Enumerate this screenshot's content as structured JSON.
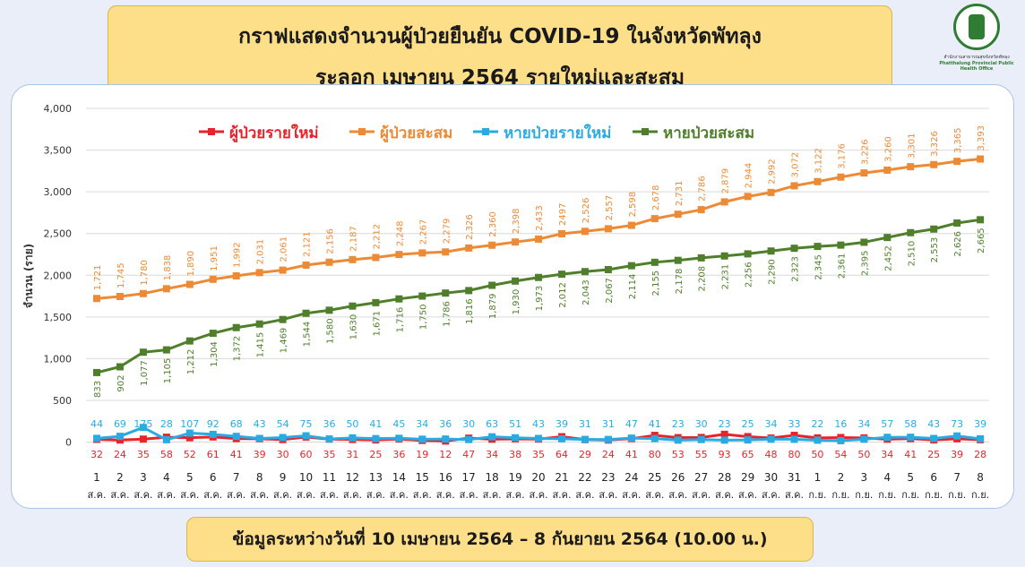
{
  "header": {
    "title_line1": "กราฟแสดงจำนวนผู้ป่วยยืนยัน COVID-19 ในจังหวัดพัทลุง",
    "title_line2": "ระลอก เมษายน 2564 รายใหม่และสะสม"
  },
  "logo": {
    "text_th": "สำนักงานสาธารณสุขจังหวัดพัทลุง",
    "text_en": "Phatthalung Provincial Public Health Office"
  },
  "footer": {
    "note": "ข้อมูลระหว่างวันที่ 10 เมษายน 2564 – 8 กันยายน 2564 (10.00 น.)"
  },
  "chart_data": {
    "type": "line",
    "ylabel": "จำนวน (ราย)",
    "ylim": [
      0,
      4000
    ],
    "yticks": [
      0,
      500,
      1000,
      1500,
      2000,
      2500,
      3000,
      3500,
      4000
    ],
    "ytick_labels": [
      "0",
      "500",
      "1,000",
      "1,500",
      "2,000",
      "2,500",
      "3,000",
      "3,500",
      "4,000"
    ],
    "legend_position": "top",
    "grid": true,
    "categories": [
      {
        "day": "1",
        "month": "ส.ค."
      },
      {
        "day": "2",
        "month": "ส.ค."
      },
      {
        "day": "3",
        "month": "ส.ค."
      },
      {
        "day": "4",
        "month": "ส.ค."
      },
      {
        "day": "5",
        "month": "ส.ค."
      },
      {
        "day": "6",
        "month": "ส.ค."
      },
      {
        "day": "7",
        "month": "ส.ค."
      },
      {
        "day": "8",
        "month": "ส.ค."
      },
      {
        "day": "9",
        "month": "ส.ค."
      },
      {
        "day": "10",
        "month": "ส.ค."
      },
      {
        "day": "11",
        "month": "ส.ค."
      },
      {
        "day": "12",
        "month": "ส.ค."
      },
      {
        "day": "13",
        "month": "ส.ค."
      },
      {
        "day": "14",
        "month": "ส.ค."
      },
      {
        "day": "15",
        "month": "ส.ค."
      },
      {
        "day": "16",
        "month": "ส.ค."
      },
      {
        "day": "17",
        "month": "ส.ค."
      },
      {
        "day": "18",
        "month": "ส.ค."
      },
      {
        "day": "19",
        "month": "ส.ค."
      },
      {
        "day": "20",
        "month": "ส.ค."
      },
      {
        "day": "21",
        "month": "ส.ค."
      },
      {
        "day": "22",
        "month": "ส.ค."
      },
      {
        "day": "23",
        "month": "ส.ค."
      },
      {
        "day": "24",
        "month": "ส.ค."
      },
      {
        "day": "25",
        "month": "ส.ค."
      },
      {
        "day": "26",
        "month": "ส.ค."
      },
      {
        "day": "27",
        "month": "ส.ค."
      },
      {
        "day": "28",
        "month": "ส.ค."
      },
      {
        "day": "29",
        "month": "ส.ค."
      },
      {
        "day": "30",
        "month": "ส.ค."
      },
      {
        "day": "31",
        "month": "ส.ค."
      },
      {
        "day": "1",
        "month": "ก.ย."
      },
      {
        "day": "2",
        "month": "ก.ย."
      },
      {
        "day": "3",
        "month": "ก.ย."
      },
      {
        "day": "4",
        "month": "ก.ย."
      },
      {
        "day": "5",
        "month": "ก.ย."
      },
      {
        "day": "6",
        "month": "ก.ย."
      },
      {
        "day": "7",
        "month": "ก.ย."
      },
      {
        "day": "8",
        "month": "ก.ย."
      }
    ],
    "series": [
      {
        "name": "ผู้ป่วยรายใหม่",
        "color": "#e8232b",
        "label_position": "below",
        "values": [
          32,
          24,
          35,
          58,
          52,
          61,
          41,
          39,
          30,
          60,
          35,
          31,
          25,
          36,
          19,
          12,
          47,
          34,
          38,
          35,
          64,
          29,
          24,
          41,
          80,
          53,
          55,
          93,
          65,
          48,
          80,
          50,
          54,
          50,
          34,
          41,
          25,
          39,
          28
        ],
        "labels": [
          "32",
          "24",
          "35",
          "58",
          "52",
          "61",
          "41",
          "39",
          "30",
          "60",
          "35",
          "31",
          "25",
          "36",
          "19",
          "12",
          "47",
          "34",
          "38",
          "35",
          "64",
          "29",
          "24",
          "41",
          "80",
          "53",
          "55",
          "93",
          "65",
          "48",
          "80",
          "50",
          "54",
          "50",
          "34",
          "41",
          "25",
          "39",
          "28"
        ]
      },
      {
        "name": "ผู้ป่วยสะสม",
        "color": "#ed8a35",
        "label_position": "above",
        "values": [
          1721,
          1745,
          1780,
          1838,
          1890,
          1951,
          1992,
          2031,
          2061,
          2121,
          2156,
          2187,
          2212,
          2248,
          2267,
          2279,
          2326,
          2360,
          2398,
          2433,
          2497,
          2526,
          2557,
          2598,
          2678,
          2731,
          2786,
          2879,
          2944,
          2992,
          3072,
          3122,
          3176,
          3226,
          3260,
          3301,
          3326,
          3365,
          3393
        ],
        "labels": [
          "1,721",
          "1,745",
          "1,780",
          "1,838",
          "1,890",
          "1,951",
          "1,992",
          "2,031",
          "2,061",
          "2,121",
          "2,156",
          "2,187",
          "2,212",
          "2,248",
          "2,267",
          "2,279",
          "2,326",
          "2,360",
          "2,398",
          "2,433",
          "2497",
          "2,526",
          "2,557",
          "2,598",
          "2,678",
          "2,731",
          "2,786",
          "2,879",
          "2,944",
          "2,992",
          "3,072",
          "3,122",
          "3,176",
          "3,226",
          "3,260",
          "3,301",
          "3,326",
          "3,365",
          "3,393"
        ]
      },
      {
        "name": "หายป่วยรายใหม่",
        "color": "#29abe2",
        "label_position": "above",
        "values": [
          44,
          69,
          175,
          28,
          107,
          92,
          68,
          43,
          54,
          75,
          36,
          50,
          41,
          45,
          34,
          36,
          30,
          63,
          51,
          43,
          39,
          31,
          31,
          47,
          41,
          23,
          30,
          23,
          25,
          34,
          33,
          22,
          16,
          34,
          57,
          58,
          43,
          73,
          39
        ],
        "labels": [
          "44",
          "69",
          "175",
          "28",
          "107",
          "92",
          "68",
          "43",
          "54",
          "75",
          "36",
          "50",
          "41",
          "45",
          "34",
          "36",
          "30",
          "63",
          "51",
          "43",
          "39",
          "31",
          "31",
          "47",
          "41",
          "23",
          "30",
          "23",
          "25",
          "34",
          "33",
          "22",
          "16",
          "34",
          "57",
          "58",
          "43",
          "73",
          "39"
        ]
      },
      {
        "name": "หายป่วยสะสม",
        "color": "#4f7f2a",
        "label_position": "below",
        "values": [
          833,
          902,
          1077,
          1105,
          1212,
          1304,
          1372,
          1415,
          1469,
          1544,
          1580,
          1630,
          1671,
          1716,
          1750,
          1786,
          1816,
          1879,
          1930,
          1973,
          2012,
          2043,
          2067,
          2114,
          2155,
          2178,
          2208,
          2231,
          2256,
          2290,
          2323,
          2345,
          2361,
          2395,
          2452,
          2510,
          2553,
          2626,
          2665
        ],
        "labels": [
          "833",
          "902",
          "1,077",
          "1,105",
          "1,212",
          "1,304",
          "1,372",
          "1,415",
          "1,469",
          "1,544",
          "1,580",
          "1,630",
          "1,671",
          "1,716",
          "1,750",
          "1,786",
          "1,816",
          "1,879",
          "1,930",
          "1,973",
          "2,012",
          "2,043",
          "2,067",
          "2,114",
          "2,155",
          "2,178",
          "2,208",
          "2,231",
          "2,256",
          "2,290",
          "2,323",
          "2,345",
          "2,361",
          "2,395",
          "2,452",
          "2,510",
          "2,553",
          "2,626",
          "2,665"
        ]
      }
    ]
  }
}
